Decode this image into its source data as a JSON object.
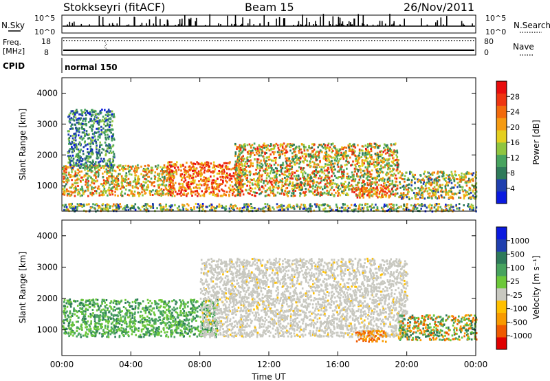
{
  "header": {
    "station": "Stokkseyri (fitACF)",
    "beam": "Beam 15",
    "date": "26/Nov/2011"
  },
  "strip_labels": {
    "nsky": "N.Sky",
    "nsky_top": "10^5",
    "nsky_bottom": "10^0",
    "nsearch": "N.Search",
    "nsearch_top": "10^5",
    "nsearch_bottom": "10^0",
    "freq_line1": "Freq.",
    "freq_line2": "[MHz]",
    "freq_top": "18",
    "freq_bottom": "8",
    "nave": "Nave",
    "nave_top": "80",
    "nave_bottom": "0",
    "cpid": "CPID",
    "cpid_value": "normal 150"
  },
  "colors": {
    "power_scale": [
      "#0a1adf",
      "#1f3fae",
      "#2e7a5a",
      "#47a35e",
      "#8fc53f",
      "#e4cf1f",
      "#f59b12",
      "#f26a0c",
      "#ee3510",
      "#e80d0d"
    ],
    "velocity_scale": [
      "#0a1adf",
      "#1f3fae",
      "#2e7a5a",
      "#47a35e",
      "#6cc83a",
      "#c8c8c0",
      "#ffc000",
      "#f89a00",
      "#ef5a00",
      "#e00000"
    ]
  },
  "chart_data": [
    {
      "type": "heatmap",
      "name": "power",
      "xlabel": "",
      "ylabel": "Slant Range [km]",
      "x_ticks": [
        "00:00",
        "04:00",
        "08:00",
        "12:00",
        "16:00",
        "20:00",
        "00:00"
      ],
      "xlim_hours": [
        0,
        24
      ],
      "y_ticks": [
        1000,
        2000,
        3000,
        4000
      ],
      "ylim": [
        180,
        4500
      ],
      "colorbar": {
        "label": "Power [dB]",
        "tick_labels": [
          "4",
          "8",
          "12",
          "16",
          "20",
          "24",
          "28"
        ],
        "range": [
          0,
          30
        ]
      },
      "scatter_regions": [
        {
          "t_start": 0.0,
          "t_end": 6.5,
          "range_lo": 700,
          "range_hi": 1700,
          "power": [
            8,
            26
          ]
        },
        {
          "t_start": 0.3,
          "t_end": 3.0,
          "range_lo": 1600,
          "range_hi": 3500,
          "power": [
            2,
            14
          ]
        },
        {
          "t_start": 6.0,
          "t_end": 10.5,
          "range_lo": 700,
          "range_hi": 1800,
          "power": [
            16,
            30
          ]
        },
        {
          "t_start": 10.0,
          "t_end": 19.5,
          "range_lo": 700,
          "range_hi": 2400,
          "power": [
            6,
            28
          ]
        },
        {
          "t_start": 17.0,
          "t_end": 19.0,
          "range_lo": 650,
          "range_hi": 1000,
          "power": [
            16,
            28
          ]
        },
        {
          "t_start": 19.5,
          "t_end": 24.0,
          "range_lo": 600,
          "range_hi": 1500,
          "power": [
            4,
            24
          ]
        },
        {
          "t_start": 0.0,
          "t_end": 24.0,
          "range_lo": 200,
          "range_hi": 450,
          "power": [
            2,
            22
          ]
        }
      ]
    },
    {
      "type": "heatmap",
      "name": "velocity",
      "xlabel": "Time UT",
      "ylabel": "Slant Range [km]",
      "x_ticks": [
        "00:00",
        "04:00",
        "08:00",
        "12:00",
        "16:00",
        "20:00",
        "00:00"
      ],
      "xlim_hours": [
        0,
        24
      ],
      "y_ticks": [
        1000,
        2000,
        3000,
        4000
      ],
      "ylim": [
        180,
        4500
      ],
      "colorbar": {
        "label": "Velocity [m s⁻¹]",
        "tick_labels": [
          "1000",
          "500",
          "100",
          "25",
          "-25",
          "-100",
          "-500",
          "-1000"
        ]
      },
      "scatter_regions": [
        {
          "t_start": 0.0,
          "t_end": 9.0,
          "range_lo": 800,
          "range_hi": 2000,
          "velocity": "positive (100 to 500)"
        },
        {
          "t_start": 8.0,
          "t_end": 20.0,
          "range_lo": 800,
          "range_hi": 3300,
          "velocity": "ground scatter (-25 to 25)"
        },
        {
          "t_start": 17.0,
          "t_end": 18.8,
          "range_lo": 650,
          "range_hi": 1000,
          "velocity": "negative (-100 to -500)"
        },
        {
          "t_start": 19.5,
          "t_end": 24.0,
          "range_lo": 700,
          "range_hi": 1500,
          "velocity": "mixed (-500 to 500)"
        }
      ]
    }
  ]
}
